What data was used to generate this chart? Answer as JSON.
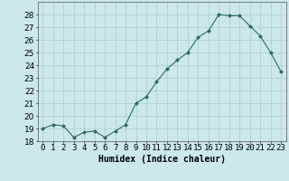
{
  "x": [
    0,
    1,
    2,
    3,
    4,
    5,
    6,
    7,
    8,
    9,
    10,
    11,
    12,
    13,
    14,
    15,
    16,
    17,
    18,
    19,
    20,
    21,
    22,
    23
  ],
  "y": [
    19.0,
    19.3,
    19.2,
    18.3,
    18.7,
    18.8,
    18.3,
    18.8,
    19.3,
    21.0,
    21.5,
    22.7,
    23.7,
    24.4,
    25.0,
    26.2,
    26.7,
    28.0,
    27.9,
    27.9,
    27.1,
    26.3,
    25.0,
    23.5
  ],
  "line_color": "#2e6b5e",
  "marker": "D",
  "marker_size": 2.5,
  "bg_color": "#cce8e8",
  "grid_color": "#aacccc",
  "xlabel": "Humidex (Indice chaleur)",
  "ylim": [
    18,
    29
  ],
  "xlim": [
    -0.5,
    23.5
  ],
  "yticks": [
    18,
    19,
    20,
    21,
    22,
    23,
    24,
    25,
    26,
    27,
    28
  ],
  "xticks": [
    0,
    1,
    2,
    3,
    4,
    5,
    6,
    7,
    8,
    9,
    10,
    11,
    12,
    13,
    14,
    15,
    16,
    17,
    18,
    19,
    20,
    21,
    22,
    23
  ],
  "xtick_labels": [
    "0",
    "1",
    "2",
    "3",
    "4",
    "5",
    "6",
    "7",
    "8",
    "9",
    "10",
    "11",
    "12",
    "13",
    "14",
    "15",
    "16",
    "17",
    "18",
    "19",
    "20",
    "21",
    "22",
    "23"
  ],
  "label_fontsize": 7,
  "tick_fontsize": 6.5
}
